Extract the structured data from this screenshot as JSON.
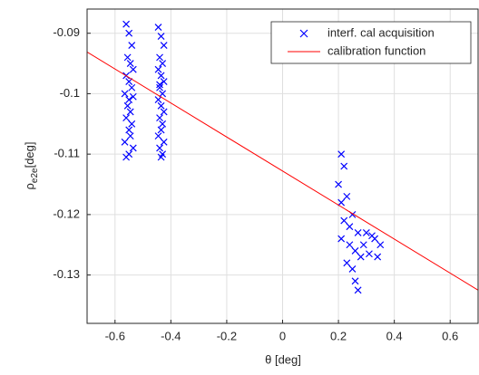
{
  "chart_data": {
    "type": "scatter",
    "xlabel": "θ [deg]",
    "ylabel": {
      "symbol": "ρ",
      "subscript": "e2e",
      "unit": "[deg]"
    },
    "xlim": [
      -0.7,
      0.7
    ],
    "ylim": [
      -0.138,
      -0.086
    ],
    "xticks": [
      -0.6,
      -0.4,
      -0.2,
      0,
      0.2,
      0.4,
      0.6
    ],
    "yticks": [
      -0.09,
      -0.1,
      -0.11,
      -0.12,
      -0.13
    ],
    "grid": true,
    "legend": "upper right",
    "series": [
      {
        "name": "interf. cal acquisition",
        "color": "#0000ff",
        "marker": "x",
        "x": [
          -0.56,
          -0.55,
          -0.54,
          -0.555,
          -0.545,
          -0.535,
          -0.56,
          -0.55,
          -0.54,
          -0.565,
          -0.55,
          -0.535,
          -0.555,
          -0.545,
          -0.56,
          -0.54,
          -0.55,
          -0.545,
          -0.565,
          -0.535,
          -0.55,
          -0.56,
          -0.445,
          -0.435,
          -0.425,
          -0.44,
          -0.43,
          -0.445,
          -0.435,
          -0.425,
          -0.44,
          -0.43,
          -0.445,
          -0.435,
          -0.425,
          -0.44,
          -0.43,
          -0.435,
          -0.445,
          -0.425,
          -0.44,
          -0.43,
          -0.435,
          -0.44,
          0.21,
          0.22,
          0.2,
          0.23,
          0.21,
          0.25,
          0.22,
          0.24,
          0.27,
          0.3,
          0.33,
          0.35,
          0.21,
          0.24,
          0.26,
          0.28,
          0.31,
          0.34,
          0.25,
          0.26,
          0.27,
          0.23,
          0.29,
          0.32
        ],
        "y": [
          -0.0885,
          -0.09,
          -0.092,
          -0.094,
          -0.095,
          -0.096,
          -0.097,
          -0.098,
          -0.099,
          -0.1,
          -0.101,
          -0.1005,
          -0.102,
          -0.103,
          -0.104,
          -0.105,
          -0.106,
          -0.107,
          -0.108,
          -0.109,
          -0.11,
          -0.1105,
          -0.089,
          -0.0905,
          -0.092,
          -0.094,
          -0.095,
          -0.096,
          -0.097,
          -0.098,
          -0.099,
          -0.1,
          -0.101,
          -0.102,
          -0.103,
          -0.104,
          -0.105,
          -0.106,
          -0.107,
          -0.108,
          -0.109,
          -0.11,
          -0.1105,
          -0.0985,
          -0.11,
          -0.112,
          -0.115,
          -0.117,
          -0.118,
          -0.12,
          -0.121,
          -0.122,
          -0.123,
          -0.123,
          -0.124,
          -0.125,
          -0.124,
          -0.125,
          -0.126,
          -0.127,
          -0.1265,
          -0.127,
          -0.129,
          -0.131,
          -0.1325,
          -0.128,
          -0.125,
          -0.1235
        ]
      },
      {
        "name": "calibration function",
        "color": "#ff0000",
        "marker": "line",
        "x": [
          -0.7,
          0.7
        ],
        "y": [
          -0.0931,
          -0.1325
        ]
      }
    ]
  }
}
